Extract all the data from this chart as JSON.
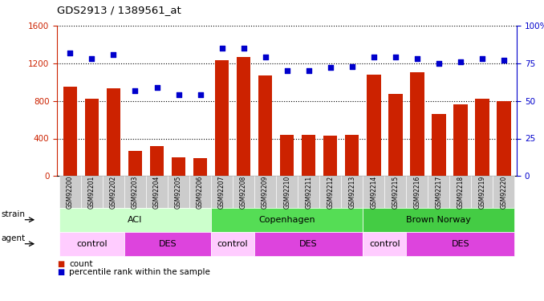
{
  "title": "GDS2913 / 1389561_at",
  "samples": [
    "GSM92200",
    "GSM92201",
    "GSM92202",
    "GSM92203",
    "GSM92204",
    "GSM92205",
    "GSM92206",
    "GSM92207",
    "GSM92208",
    "GSM92209",
    "GSM92210",
    "GSM92211",
    "GSM92212",
    "GSM92213",
    "GSM92214",
    "GSM92215",
    "GSM92216",
    "GSM92217",
    "GSM92218",
    "GSM92219",
    "GSM92220"
  ],
  "counts": [
    950,
    820,
    930,
    270,
    320,
    200,
    190,
    1230,
    1270,
    1070,
    440,
    440,
    430,
    440,
    1080,
    870,
    1100,
    660,
    760,
    820,
    800
  ],
  "percentiles": [
    82,
    78,
    81,
    57,
    59,
    54,
    54,
    85,
    85,
    79,
    70,
    70,
    72,
    73,
    79,
    79,
    78,
    75,
    76,
    78,
    77
  ],
  "ylim_left": [
    0,
    1600
  ],
  "ylim_right": [
    0,
    100
  ],
  "yticks_left": [
    0,
    400,
    800,
    1200,
    1600
  ],
  "yticks_right": [
    0,
    25,
    50,
    75,
    100
  ],
  "bar_color": "#cc2200",
  "dot_color": "#0000cc",
  "plot_bg": "#ffffff",
  "tick_area_color": "#cccccc",
  "strain_groups": [
    {
      "label": "ACI",
      "start": 0,
      "end": 6,
      "color": "#ccffcc"
    },
    {
      "label": "Copenhagen",
      "start": 7,
      "end": 13,
      "color": "#55dd55"
    },
    {
      "label": "Brown Norway",
      "start": 14,
      "end": 20,
      "color": "#44cc44"
    }
  ],
  "agent_groups": [
    {
      "label": "control",
      "start": 0,
      "end": 2,
      "color": "#ffccff"
    },
    {
      "label": "DES",
      "start": 3,
      "end": 6,
      "color": "#dd44dd"
    },
    {
      "label": "control",
      "start": 7,
      "end": 8,
      "color": "#ffccff"
    },
    {
      "label": "DES",
      "start": 9,
      "end": 13,
      "color": "#dd44dd"
    },
    {
      "label": "control",
      "start": 14,
      "end": 15,
      "color": "#ffccff"
    },
    {
      "label": "DES",
      "start": 16,
      "end": 20,
      "color": "#dd44dd"
    }
  ],
  "strain_label": "strain",
  "agent_label": "agent",
  "legend_count": "count",
  "legend_pct": "percentile rank within the sample"
}
